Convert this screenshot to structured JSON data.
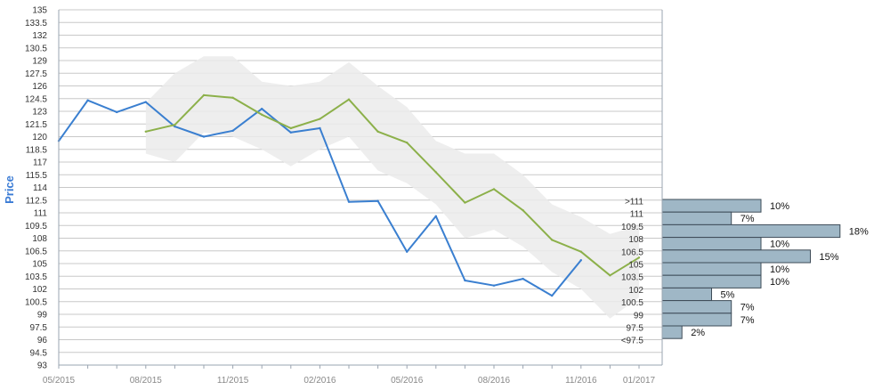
{
  "chart_data": {
    "type": "line",
    "ylabel": "Price",
    "ylim": [
      93,
      135
    ],
    "y_ticks": [
      "93",
      "94.5",
      "96",
      "97.5",
      "99",
      "100.5",
      "102",
      "103.5",
      "105",
      "106.5",
      "108",
      "109.5",
      "111",
      "112.5",
      "114",
      "115.5",
      "117",
      "118.5",
      "120",
      "121.5",
      "123",
      "124.5",
      "126",
      "127.5",
      "129",
      "130.5",
      "132",
      "133.5",
      "135"
    ],
    "x_ticks": [
      "05/2015",
      "08/2015",
      "11/2015",
      "02/2016",
      "05/2016",
      "08/2016",
      "11/2016",
      "01/2017"
    ],
    "grid": true,
    "series": [
      {
        "role": "actual",
        "color": "#3a7fd0",
        "x": [
          "2015-05",
          "2015-06",
          "2015-07",
          "2015-08",
          "2015-09",
          "2015-10",
          "2015-11",
          "2015-12",
          "2016-01",
          "2016-02",
          "2016-03",
          "2016-04",
          "2016-05",
          "2016-06",
          "2016-07",
          "2016-08",
          "2016-09",
          "2016-10",
          "2016-11"
        ],
        "values": [
          119.5,
          124.3,
          122.9,
          124.1,
          121.2,
          120.0,
          120.7,
          123.3,
          120.5,
          121.0,
          112.3,
          112.4,
          106.4,
          110.6,
          103.0,
          102.4,
          103.2,
          101.2,
          105.4
        ]
      },
      {
        "role": "forecast",
        "color": "#8cb04a",
        "x": [
          "2015-08",
          "2015-09",
          "2015-10",
          "2015-11",
          "2015-12",
          "2016-01",
          "2016-02",
          "2016-03",
          "2016-04",
          "2016-05",
          "2016-06",
          "2016-07",
          "2016-08",
          "2016-09",
          "2016-10",
          "2016-11",
          "2016-12",
          "2017-01"
        ],
        "values": [
          120.6,
          121.4,
          124.9,
          124.6,
          122.6,
          121.0,
          122.1,
          124.4,
          120.6,
          119.3,
          115.8,
          112.2,
          113.8,
          111.3,
          107.8,
          106.4,
          103.6,
          105.7
        ]
      }
    ],
    "band": {
      "color": "#ebebeb",
      "x": [
        "2015-08",
        "2015-09",
        "2015-10",
        "2015-11",
        "2015-12",
        "2016-01",
        "2016-02",
        "2016-03",
        "2016-04",
        "2016-05",
        "2016-06",
        "2016-07",
        "2016-08",
        "2016-09",
        "2016-10",
        "2016-11",
        "2016-12",
        "2017-01"
      ],
      "upper": [
        124.0,
        127.5,
        129.5,
        129.5,
        126.5,
        126.0,
        126.5,
        128.8,
        126.0,
        123.5,
        119.5,
        118.0,
        118.0,
        115.5,
        112.0,
        110.5,
        108.5,
        109.5
      ],
      "lower": [
        118.0,
        117.0,
        120.5,
        120.0,
        118.5,
        116.5,
        118.5,
        120.0,
        116.0,
        114.5,
        112.0,
        108.0,
        109.0,
        107.0,
        104.0,
        102.0,
        98.5,
        101.0
      ]
    },
    "distribution": {
      "bar_color": "#9fb7c6",
      "bins": [
        {
          "label": ">111",
          "pct": "10%",
          "value": 10
        },
        {
          "label": "111",
          "pct": "7%",
          "value": 7
        },
        {
          "label": "109.5",
          "pct": "18%",
          "value": 18
        },
        {
          "label": "108",
          "pct": "10%",
          "value": 10
        },
        {
          "label": "106.5",
          "pct": "15%",
          "value": 15
        },
        {
          "label": "105",
          "pct": "10%",
          "value": 10
        },
        {
          "label": "103.5",
          "pct": "10%",
          "value": 10
        },
        {
          "label": "102",
          "pct": "5%",
          "value": 5
        },
        {
          "label": "100.5",
          "pct": "7%",
          "value": 7
        },
        {
          "label": "99",
          "pct": "7%",
          "value": 7
        },
        {
          "label": "97.5",
          "pct": "2%",
          "value": 2
        },
        {
          "label": "<97.5",
          "pct": "",
          "value": 0
        }
      ]
    }
  }
}
